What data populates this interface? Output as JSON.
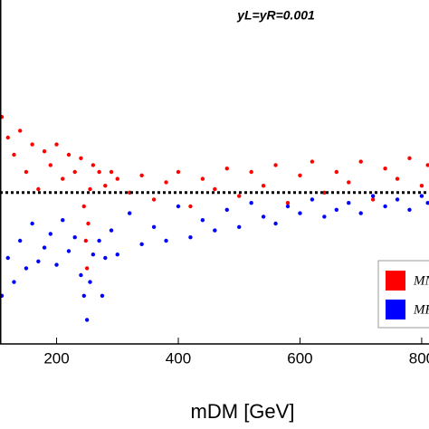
{
  "chart_data": {
    "type": "scatter",
    "title": "yL=yR=0.001",
    "xlabel": "mDM [GeV]",
    "xlim": [
      107,
      812
    ],
    "ylim": [
      0,
      100
    ],
    "xticks": [
      200,
      400,
      600,
      800
    ],
    "hline": 44,
    "series": [
      {
        "name": "MN",
        "color": "#ff0000",
        "x": [
          110,
          120,
          130,
          140,
          150,
          160,
          170,
          180,
          190,
          200,
          210,
          220,
          230,
          240,
          245,
          248,
          250,
          252,
          255,
          260,
          270,
          280,
          290,
          300,
          320,
          340,
          360,
          380,
          400,
          420,
          440,
          460,
          480,
          500,
          520,
          540,
          560,
          580,
          600,
          620,
          640,
          660,
          680,
          700,
          720,
          740,
          760,
          780,
          800,
          810
        ],
        "values": [
          66,
          60,
          55,
          62,
          50,
          58,
          45,
          56,
          52,
          58,
          48,
          55,
          50,
          54,
          40,
          30,
          22,
          35,
          45,
          52,
          50,
          46,
          50,
          48,
          44,
          49,
          42,
          47,
          50,
          40,
          48,
          45,
          51,
          43,
          50,
          46,
          52,
          41,
          49,
          53,
          44,
          50,
          47,
          53,
          42,
          51,
          48,
          54,
          46,
          52
        ]
      },
      {
        "name": "MF",
        "color": "#0000ff",
        "x": [
          110,
          120,
          130,
          140,
          150,
          160,
          170,
          180,
          190,
          200,
          210,
          220,
          230,
          240,
          245,
          250,
          255,
          260,
          270,
          275,
          280,
          290,
          300,
          320,
          340,
          360,
          380,
          400,
          420,
          440,
          460,
          480,
          500,
          520,
          540,
          560,
          580,
          600,
          620,
          640,
          660,
          680,
          700,
          720,
          740,
          760,
          780,
          800,
          810
        ],
        "values": [
          14,
          25,
          18,
          30,
          22,
          35,
          24,
          28,
          32,
          23,
          36,
          27,
          31,
          20,
          14,
          7,
          18,
          26,
          30,
          14,
          25,
          33,
          26,
          38,
          29,
          34,
          30,
          40,
          31,
          36,
          33,
          39,
          34,
          41,
          37,
          35,
          40,
          38,
          42,
          37,
          39,
          41,
          38,
          43,
          40,
          42,
          39,
          43,
          41
        ]
      }
    ]
  }
}
